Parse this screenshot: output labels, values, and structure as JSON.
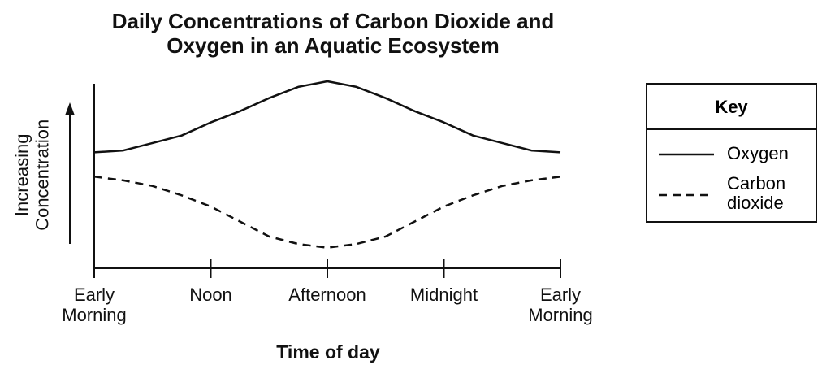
{
  "chart_data": {
    "type": "line",
    "title": "Daily Concentrations of Carbon Dioxide and Oxygen in an Aquatic Ecosystem",
    "xlabel": "Time of day",
    "ylabel": "Increasing Concentration",
    "legend_title": "Key",
    "x": [
      0,
      0.25,
      0.5,
      0.75,
      1,
      1.25,
      1.5,
      1.75,
      2,
      2.25,
      2.5,
      2.75,
      3,
      3.25,
      3.5,
      3.75,
      4
    ],
    "xlim": [
      0,
      4
    ],
    "xticks": [
      {
        "value": 0,
        "label": "Early Morning"
      },
      {
        "value": 1,
        "label": "Noon"
      },
      {
        "value": 2,
        "label": "Afternoon"
      },
      {
        "value": 3,
        "label": "Midnight"
      },
      {
        "value": 4,
        "label": "Early Morning"
      }
    ],
    "ylim": [
      0,
      100
    ],
    "series": [
      {
        "name": "Oxygen",
        "color": "#111111",
        "dash": "solid",
        "values": [
          62,
          63,
          67,
          71,
          78,
          84,
          91,
          97,
          100,
          97,
          91,
          84,
          78,
          71,
          67,
          63,
          62
        ]
      },
      {
        "name": "Carbon dioxide",
        "color": "#111111",
        "dash": "dashed",
        "values": [
          49,
          47,
          44,
          39,
          33,
          25,
          17,
          13,
          11,
          13,
          17,
          25,
          33,
          39,
          44,
          47,
          49
        ]
      }
    ]
  }
}
